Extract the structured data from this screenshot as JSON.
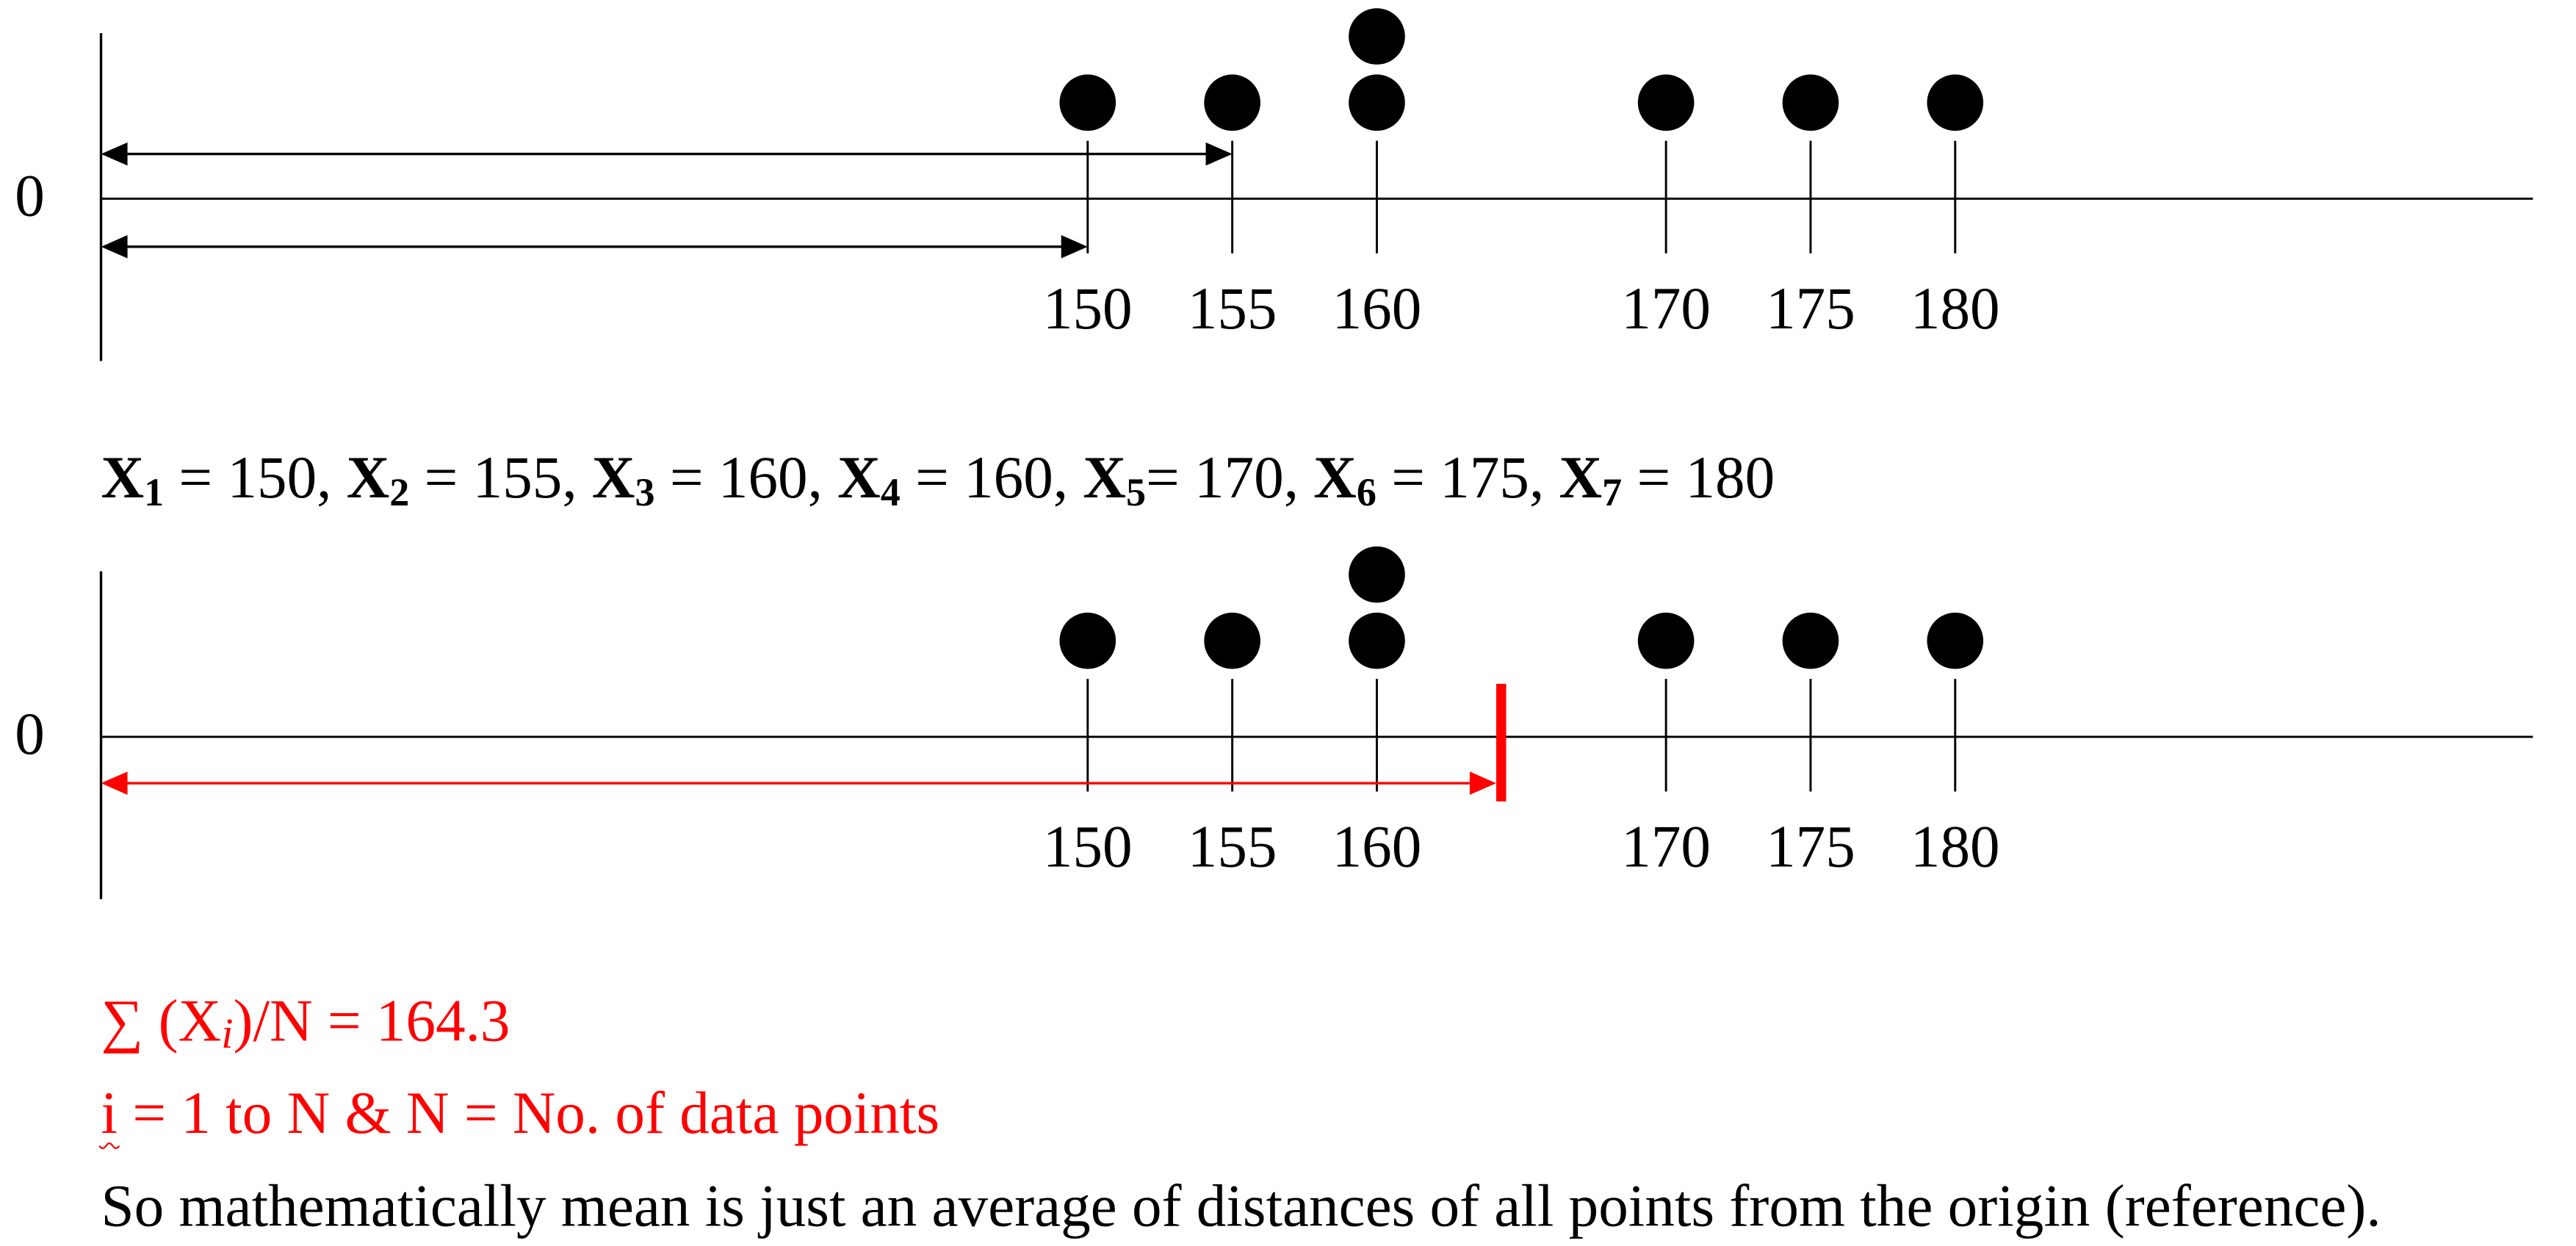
{
  "origin_label": "0",
  "ticks": [
    150,
    155,
    160,
    170,
    175,
    180
  ],
  "points": [
    {
      "label": "X",
      "sub": "1",
      "sep": " = ",
      "value": 150,
      "end": ", "
    },
    {
      "label": "X",
      "sub": "2",
      "sep": " = ",
      "value": 155,
      "end": ", "
    },
    {
      "label": "X",
      "sub": "3",
      "sep": " = ",
      "value": 160,
      "end": ", "
    },
    {
      "label": "X",
      "sub": "4",
      "sep": " = ",
      "value": 160,
      "end": ", "
    },
    {
      "label": "X",
      "sub": "5",
      "sep": "= ",
      "value": 170,
      "end": ", "
    },
    {
      "label": "X",
      "sub": "6",
      "sep": " = ",
      "value": 175,
      "end": ", "
    },
    {
      "label": "X",
      "sub": "7",
      "sep": " = ",
      "value": 180
    }
  ],
  "mean": {
    "prefix": "∑ (X",
    "sub": "i",
    "suffix": ")/N = ",
    "value": 164.3
  },
  "definition": "i = 1 to N & N = No. of data points",
  "conclusion": "So mathematically mean is just an average of distances of all points from the origin (reference)."
}
